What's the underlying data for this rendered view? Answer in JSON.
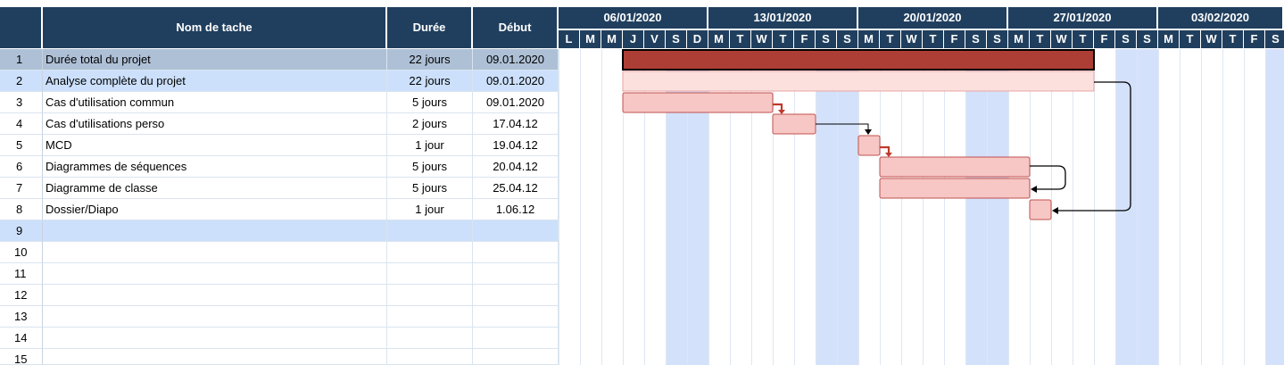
{
  "table": {
    "headers": {
      "name": "Nom de tache",
      "duration": "Durée",
      "start": "Début"
    },
    "rows": [
      {
        "num": "1",
        "name": "Durée total du projet",
        "duration": "22 jours",
        "start": "09.01.2020"
      },
      {
        "num": "2",
        "name": "Analyse  complète du projet",
        "duration": "22 jours",
        "start": "09.01.2020"
      },
      {
        "num": "3",
        "name": "Cas d'utilisation commun",
        "duration": "5 jours",
        "start": "09.01.2020"
      },
      {
        "num": "4",
        "name": "Cas d'utilisations perso",
        "duration": "2 jours",
        "start": "17.04.12"
      },
      {
        "num": "5",
        "name": "MCD",
        "duration": "1 jour",
        "start": "19.04.12"
      },
      {
        "num": "6",
        "name": "Diagrammes de séquences",
        "duration": "5 jours",
        "start": "20.04.12"
      },
      {
        "num": "7",
        "name": "Diagramme de classe",
        "duration": "5 jours",
        "start": "25.04.12"
      },
      {
        "num": "8",
        "name": "Dossier/Diapo",
        "duration": "1 jour",
        "start": "1.06.12"
      },
      {
        "num": "9",
        "name": "",
        "duration": "",
        "start": ""
      },
      {
        "num": "10",
        "name": "",
        "duration": "",
        "start": ""
      },
      {
        "num": "11",
        "name": "",
        "duration": "",
        "start": ""
      },
      {
        "num": "12",
        "name": "",
        "duration": "",
        "start": ""
      },
      {
        "num": "13",
        "name": "",
        "duration": "",
        "start": ""
      },
      {
        "num": "14",
        "name": "",
        "duration": "",
        "start": ""
      },
      {
        "num": "15",
        "name": "",
        "duration": "",
        "start": ""
      }
    ]
  },
  "timeline": {
    "weeks": [
      "06/01/2020",
      "13/01/2020",
      "20/01/2020",
      "27/01/2020",
      "03/02/2020"
    ],
    "days": [
      "L",
      "M",
      "M",
      "J",
      "V",
      "S",
      "D",
      "M",
      "T",
      "W",
      "T",
      "F",
      "S",
      "S",
      "M",
      "T",
      "W",
      "T",
      "F",
      "S",
      "S",
      "M",
      "T",
      "W",
      "T",
      "F",
      "S",
      "S",
      "M",
      "T",
      "W",
      "T",
      "F",
      "S"
    ],
    "weekend_day_indices": [
      5,
      6,
      12,
      13,
      19,
      20,
      26,
      27,
      33
    ]
  },
  "gantt": {
    "bars": [
      {
        "row": 1,
        "start_day": 3,
        "duration_days": 22,
        "style": "summary"
      },
      {
        "row": 2,
        "start_day": 3,
        "duration_days": 22,
        "style": "light"
      },
      {
        "row": 3,
        "start_day": 3,
        "duration_days": 7,
        "style": "task"
      },
      {
        "row": 4,
        "start_day": 10,
        "duration_days": 2,
        "style": "task"
      },
      {
        "row": 5,
        "start_day": 14,
        "duration_days": 1,
        "style": "task"
      },
      {
        "row": 6,
        "start_day": 15,
        "duration_days": 7,
        "style": "task"
      },
      {
        "row": 7,
        "start_day": 15,
        "duration_days": 7,
        "style": "task"
      },
      {
        "row": 8,
        "start_day": 22,
        "duration_days": 1,
        "style": "task"
      }
    ],
    "links": [
      {
        "from": 3,
        "to": 4,
        "kind": "short-red"
      },
      {
        "from": 4,
        "to": 5,
        "kind": "black"
      },
      {
        "from": 5,
        "to": 6,
        "kind": "short-red"
      },
      {
        "from": 6,
        "to": 7,
        "kind": "loop-black"
      },
      {
        "from": 2,
        "to": 8,
        "kind": "long-black"
      }
    ],
    "colors": {
      "header": "#203f5e",
      "weekend": "#d4e1fb",
      "summary_fill": "#ac3e35",
      "task_fill": "#f6c7c5",
      "task_border": "#c0504d",
      "light_fill": "#fbe0de",
      "row_highlight": "#cce0fb",
      "row1_highlight": "#aec0d6"
    }
  }
}
